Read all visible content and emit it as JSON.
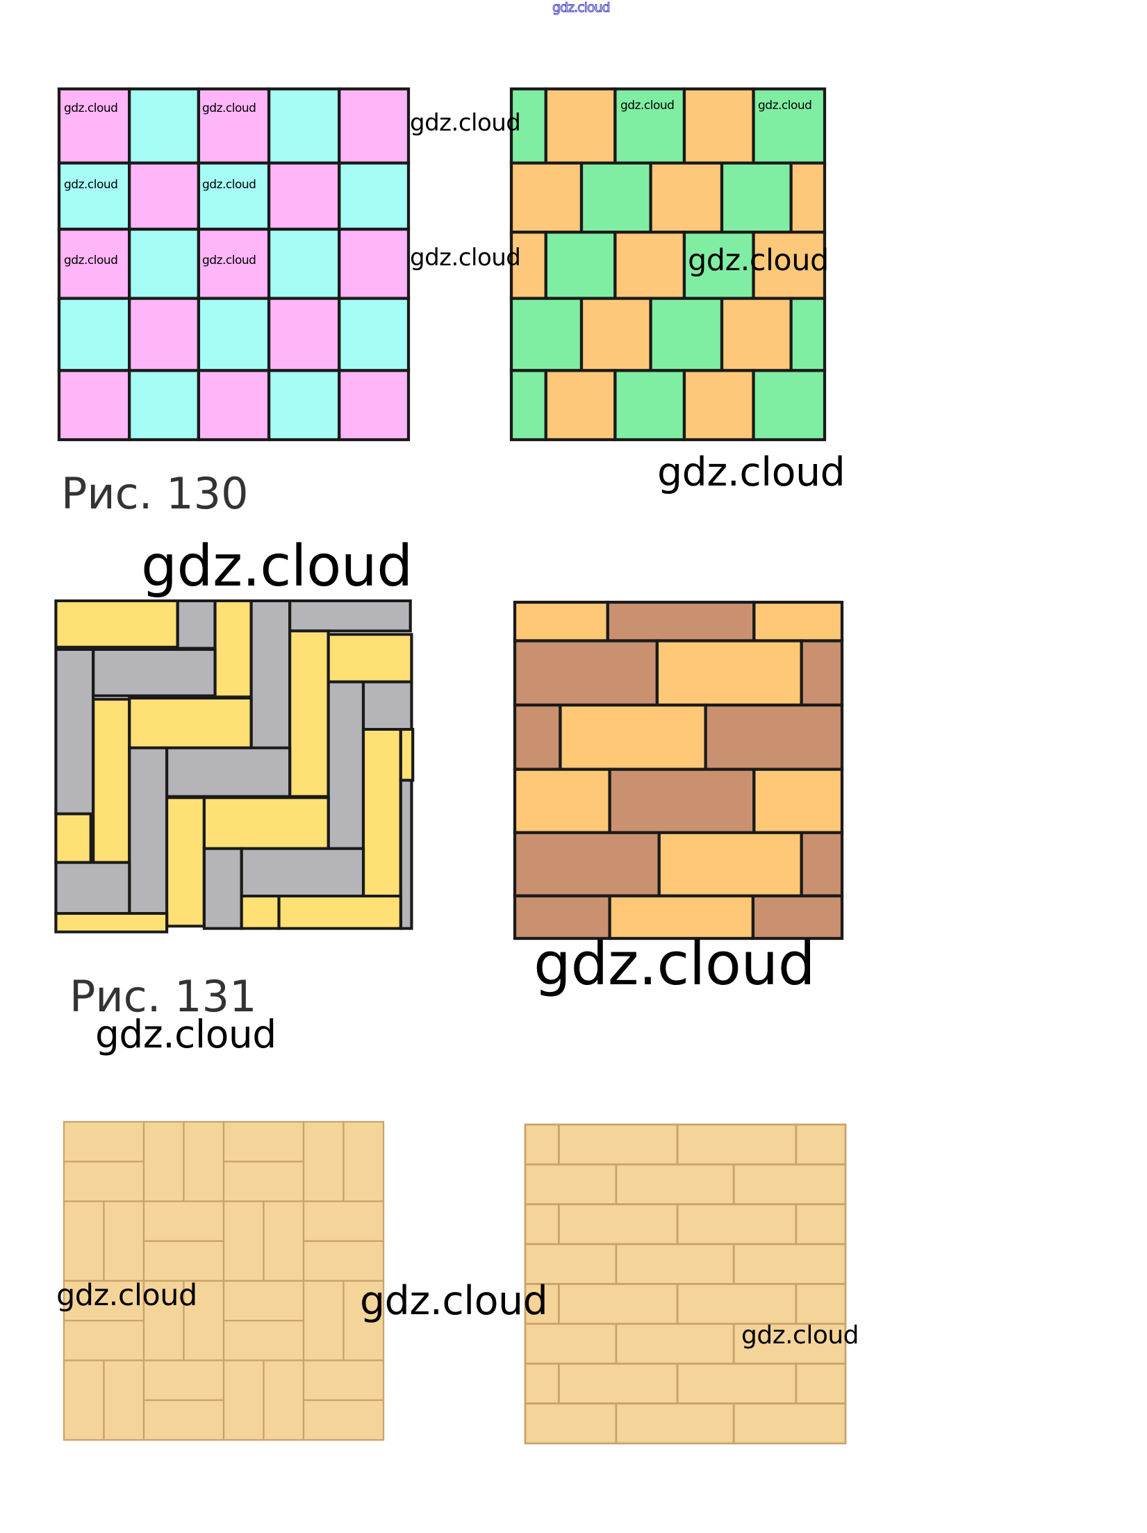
{
  "watermark_text": "gdz.cloud",
  "captions": {
    "fig130": "Рис. 130",
    "fig131": "Рис. 131"
  },
  "colors": {
    "pink": "#ffb6f8",
    "cyan": "#a6fdf6",
    "green": "#80eea2",
    "orange": "#fec87a",
    "yellow": "#ffe074",
    "gray": "#b4b4b9",
    "brown": "#c9916f",
    "brick_orange": "#fec877",
    "wood": "#f5d49a",
    "wood_line": "#c9a46a",
    "outline": "#1a1a1a"
  },
  "figures": [
    {
      "id": "checkerboard",
      "pattern": "5x5 checkerboard pink/cyan"
    },
    {
      "id": "green-orange-bond",
      "pattern": "offset rows green/orange"
    },
    {
      "id": "herringbone",
      "pattern": "herringbone yellow/gray"
    },
    {
      "id": "brown-brick",
      "pattern": "running bond brown/orange"
    },
    {
      "id": "parquet",
      "pattern": "basket-weave wood parquet"
    },
    {
      "id": "wood-brick",
      "pattern": "running bond wood planks"
    }
  ]
}
